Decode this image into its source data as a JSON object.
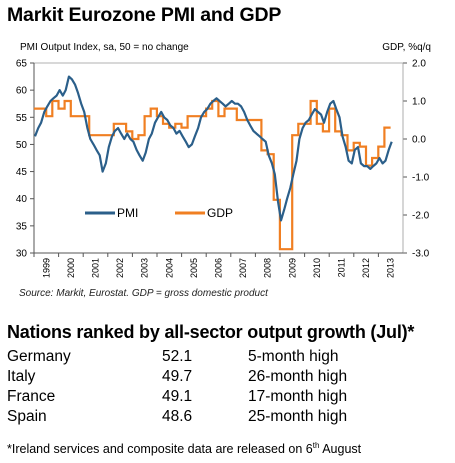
{
  "title": "Markit Eurozone PMI and GDP",
  "colors": {
    "pmi": "#2b5f8a",
    "gdp": "#f07f22",
    "text": "#000000"
  },
  "chart_data": {
    "type": "line",
    "left_axis_label": "PMI Output Index, sa, 50 = no change",
    "right_axis_label": "GDP, %q/q",
    "left_ylim": [
      30,
      65
    ],
    "left_ticks": [
      "65",
      "60",
      "55",
      "50",
      "45",
      "40",
      "35",
      "30"
    ],
    "right_ylim": [
      -3.0,
      2.0
    ],
    "right_ticks": [
      "2.0",
      "1.0",
      "0.0",
      "-1.0",
      "-2.0",
      "-3.0"
    ],
    "xlim": [
      1999.0,
      2014.0
    ],
    "x_ticks": [
      "1999",
      "2000",
      "2001",
      "2002",
      "2003",
      "2004",
      "2005",
      "2006",
      "2007",
      "2008",
      "2009",
      "2010",
      "2011",
      "2012",
      "2013"
    ],
    "legend_placement": "bottom-left",
    "series": [
      {
        "name": "PMI",
        "axis": "left",
        "x": [
          1999.04,
          1999.17,
          1999.29,
          1999.42,
          1999.54,
          1999.67,
          1999.79,
          1999.92,
          2000.04,
          2000.17,
          2000.29,
          2000.42,
          2000.54,
          2000.67,
          2000.79,
          2000.92,
          2001.04,
          2001.17,
          2001.29,
          2001.42,
          2001.54,
          2001.67,
          2001.79,
          2001.92,
          2002.04,
          2002.17,
          2002.29,
          2002.42,
          2002.54,
          2002.67,
          2002.79,
          2002.92,
          2003.04,
          2003.17,
          2003.29,
          2003.42,
          2003.54,
          2003.67,
          2003.79,
          2003.92,
          2004.04,
          2004.17,
          2004.29,
          2004.42,
          2004.54,
          2004.67,
          2004.79,
          2004.92,
          2005.04,
          2005.17,
          2005.29,
          2005.42,
          2005.54,
          2005.67,
          2005.79,
          2005.92,
          2006.04,
          2006.17,
          2006.29,
          2006.42,
          2006.54,
          2006.67,
          2006.79,
          2006.92,
          2007.04,
          2007.17,
          2007.29,
          2007.42,
          2007.54,
          2007.67,
          2007.79,
          2007.92,
          2008.04,
          2008.17,
          2008.29,
          2008.42,
          2008.54,
          2008.67,
          2008.79,
          2008.92,
          2009.04,
          2009.17,
          2009.29,
          2009.42,
          2009.54,
          2009.67,
          2009.79,
          2009.92,
          2010.04,
          2010.17,
          2010.29,
          2010.42,
          2010.54,
          2010.67,
          2010.79,
          2010.92,
          2011.04,
          2011.17,
          2011.29,
          2011.42,
          2011.54,
          2011.67,
          2011.79,
          2011.92,
          2012.04,
          2012.17,
          2012.29,
          2012.42,
          2012.54,
          2012.67,
          2012.79,
          2012.92,
          2013.04,
          2013.17,
          2013.29,
          2013.42,
          2013.54
        ],
        "y": [
          51.5,
          53.0,
          54.0,
          56.0,
          57.0,
          58.0,
          58.5,
          59.0,
          60.0,
          59.0,
          60.0,
          62.5,
          62.0,
          61.0,
          59.5,
          57.5,
          56.0,
          53.0,
          51.0,
          50.0,
          49.0,
          48.0,
          45.0,
          46.5,
          49.5,
          51.5,
          52.5,
          53.0,
          52.0,
          51.0,
          52.0,
          51.0,
          50.5,
          49.0,
          48.0,
          47.0,
          48.5,
          51.0,
          52.0,
          54.0,
          55.0,
          56.0,
          55.0,
          54.5,
          53.5,
          53.0,
          52.0,
          52.5,
          51.5,
          50.5,
          49.5,
          50.0,
          51.5,
          53.0,
          55.0,
          56.0,
          56.5,
          57.5,
          58.0,
          58.5,
          58.0,
          57.5,
          57.0,
          57.5,
          58.0,
          57.5,
          57.5,
          57.0,
          56.0,
          54.5,
          53.5,
          52.5,
          52.0,
          51.5,
          51.0,
          50.5,
          48.0,
          46.5,
          44.5,
          39.5,
          36.0,
          38.0,
          40.0,
          42.0,
          44.5,
          47.0,
          51.0,
          53.0,
          54.0,
          54.5,
          55.5,
          56.5,
          56.0,
          55.5,
          54.0,
          56.0,
          57.5,
          58.0,
          56.5,
          55.0,
          51.5,
          49.5,
          47.0,
          46.5,
          49.0,
          49.5,
          46.5,
          46.0,
          46.0,
          45.5,
          46.0,
          46.5,
          47.5,
          46.5,
          47.0,
          49.0,
          50.5
        ]
      },
      {
        "name": "GDP",
        "axis": "right",
        "x": [
          1999.12,
          1999.37,
          1999.62,
          1999.87,
          2000.12,
          2000.37,
          2000.62,
          2000.87,
          2001.12,
          2001.37,
          2001.62,
          2001.87,
          2002.12,
          2002.37,
          2002.62,
          2002.87,
          2003.12,
          2003.37,
          2003.62,
          2003.87,
          2004.12,
          2004.37,
          2004.62,
          2004.87,
          2005.12,
          2005.37,
          2005.62,
          2005.87,
          2006.12,
          2006.37,
          2006.62,
          2006.87,
          2007.12,
          2007.37,
          2007.62,
          2007.87,
          2008.12,
          2008.37,
          2008.62,
          2008.87,
          2009.12,
          2009.37,
          2009.62,
          2009.87,
          2010.12,
          2010.37,
          2010.62,
          2010.87,
          2011.12,
          2011.37,
          2011.62,
          2011.87,
          2012.12,
          2012.37,
          2012.62,
          2012.87,
          2013.12,
          2013.37
        ],
        "y": [
          0.8,
          0.8,
          0.6,
          1.0,
          0.8,
          1.0,
          0.6,
          0.6,
          0.6,
          0.1,
          0.1,
          0.1,
          0.1,
          0.4,
          0.4,
          0.2,
          0.0,
          0.1,
          0.6,
          0.8,
          0.6,
          0.4,
          0.3,
          0.4,
          0.3,
          0.6,
          0.6,
          0.6,
          0.8,
          1.0,
          0.6,
          0.8,
          0.8,
          0.5,
          0.5,
          0.5,
          0.5,
          -0.3,
          -0.4,
          -1.6,
          -2.9,
          -2.9,
          0.1,
          0.4,
          0.4,
          1.0,
          0.4,
          0.2,
          0.8,
          0.2,
          0.1,
          -0.3,
          -0.1,
          -0.2,
          -0.7,
          -0.5,
          -0.2,
          0.3
        ]
      }
    ]
  },
  "source_note": "Source: Markit, Eurostat. GDP = gross domestic product",
  "section_title": "Nations ranked by all-sector output growth (Jul)*",
  "nations": [
    {
      "country": "Germany",
      "value": "52.1",
      "note": "5-month high"
    },
    {
      "country": "Italy",
      "value": "49.7",
      "note": "26-month high"
    },
    {
      "country": "France",
      "value": "49.1",
      "note": "17-month high"
    },
    {
      "country": "Spain",
      "value": "48.6",
      "note": "25-month high"
    }
  ],
  "footnote": {
    "before": "*Ireland services and composite data are released on 6",
    "sup": "th",
    "after": " August"
  }
}
